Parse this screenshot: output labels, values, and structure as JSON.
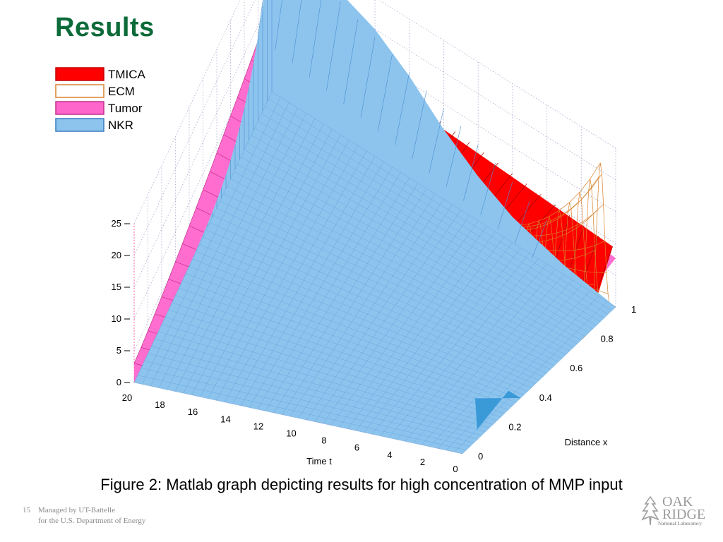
{
  "slide": {
    "title": "Results",
    "caption": "Figure 2: Matlab graph depicting results for high concentration of MMP input",
    "page_number": "15",
    "footer_line1": "Managed by UT-Battelle",
    "footer_line2": "for the U.S. Department of Energy",
    "logo": {
      "line1": "OAK",
      "line2": "RIDGE",
      "line3": "National Laboratory"
    }
  },
  "colors": {
    "title": "#0d6b3a",
    "TMICA": "#ff0000",
    "ECM": "#d9822b",
    "Tumor": "#ff66cc",
    "NKR": "#8cc4ee"
  },
  "chart_data": {
    "type": "surface3d",
    "title": "",
    "xlabel": "Distance x",
    "ylabel": "Time t",
    "zlabel": "",
    "x_ticks": [
      "0",
      "0.2",
      "0.4",
      "0.6",
      "0.8",
      "1"
    ],
    "t_ticks": [
      "0",
      "2",
      "4",
      "6",
      "8",
      "10",
      "12",
      "14",
      "16",
      "18",
      "20"
    ],
    "z_ticks": [
      "0",
      "5",
      "10",
      "15",
      "20",
      "25"
    ],
    "xlim": [
      0,
      1
    ],
    "tlim": [
      0,
      20
    ],
    "zlim": [
      0,
      25
    ],
    "grid": true,
    "legend_position": "top-left",
    "series": [
      {
        "name": "TMICA",
        "description_points": [
          {
            "x": 0.15,
            "t": 0,
            "value": 0
          },
          {
            "x": 0.8,
            "t": 0,
            "value": 10
          },
          {
            "x": 0.8,
            "t": 10,
            "value": 13
          },
          {
            "x": 0.95,
            "t": 10,
            "value": 12
          }
        ]
      },
      {
        "name": "ECM",
        "description_points": [
          {
            "x": 0.85,
            "t": 0,
            "value": 0
          },
          {
            "x": 0.9,
            "t": 0,
            "value": 25
          },
          {
            "x": 1.0,
            "t": 0,
            "value": 1
          }
        ]
      },
      {
        "name": "Tumor",
        "description_points": [
          {
            "x": 0.0,
            "t": 20,
            "value": 3
          },
          {
            "x": 0.5,
            "t": 20,
            "value": 10
          },
          {
            "x": 1.0,
            "t": 20,
            "value": 14
          }
        ]
      },
      {
        "name": "NKR",
        "description_points": [
          {
            "x": 0.0,
            "t": 20,
            "value": 0
          },
          {
            "x": 1.0,
            "t": 20,
            "value": 25
          },
          {
            "x": 1.0,
            "t": 10,
            "value": 8
          },
          {
            "x": 1.0,
            "t": 0,
            "value": 0
          },
          {
            "x": 0.25,
            "t": 0,
            "value": 3
          }
        ]
      }
    ]
  }
}
